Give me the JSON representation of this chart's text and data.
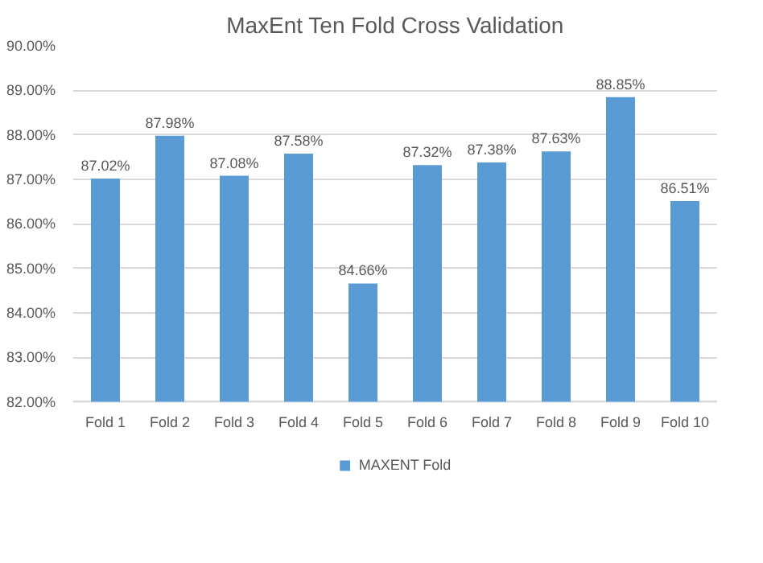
{
  "chart_data": {
    "type": "bar",
    "title": "MaxEnt Ten Fold Cross Validation",
    "categories": [
      "Fold 1",
      "Fold 2",
      "Fold 3",
      "Fold 4",
      "Fold 5",
      "Fold 6",
      "Fold 7",
      "Fold 8",
      "Fold 9",
      "Fold 10"
    ],
    "series": [
      {
        "name": "MAXENT Fold",
        "color": "#5b9bd5",
        "values": [
          87.02,
          87.98,
          87.08,
          87.58,
          84.66,
          87.32,
          87.38,
          87.63,
          88.85,
          86.51
        ],
        "value_labels": [
          "87.02%",
          "87.98%",
          "87.08%",
          "87.58%",
          "84.66%",
          "87.32%",
          "87.38%",
          "87.63%",
          "88.85%",
          "86.51%"
        ]
      }
    ],
    "ylim": [
      82,
      90
    ],
    "yticks": [
      {
        "value": 82,
        "label": "82.00%"
      },
      {
        "value": 83,
        "label": "83.00%"
      },
      {
        "value": 84,
        "label": "84.00%"
      },
      {
        "value": 85,
        "label": "85.00%"
      },
      {
        "value": 86,
        "label": "86.00%"
      },
      {
        "value": 87,
        "label": "87.00%"
      },
      {
        "value": 88,
        "label": "88.00%"
      },
      {
        "value": 89,
        "label": "89.00%"
      },
      {
        "value": 90,
        "label": "90.00%"
      }
    ],
    "grid": "y",
    "legend": "bottom"
  }
}
